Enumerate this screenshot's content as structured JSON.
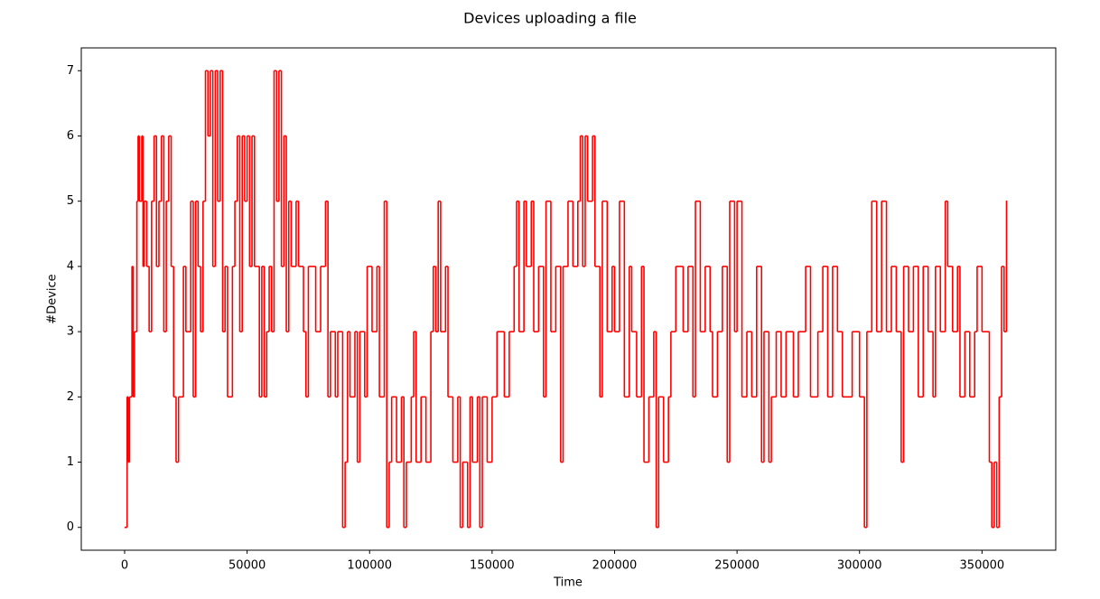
{
  "chart_data": {
    "type": "line",
    "drawstyle": "steps-post",
    "title": "Devices uploading a file",
    "xlabel": "Time",
    "ylabel": "#Device",
    "xlim": [
      -17700,
      380100
    ],
    "ylim": [
      -0.35,
      7.35
    ],
    "xticks": [
      0,
      50000,
      100000,
      150000,
      200000,
      250000,
      300000,
      350000
    ],
    "yticks": [
      0,
      1,
      2,
      3,
      4,
      5,
      6,
      7
    ],
    "grid": false,
    "x": [
      0,
      1000,
      1500,
      2000,
      3000,
      3500,
      4000,
      5000,
      5500,
      6000,
      7000,
      7500,
      8000,
      9000,
      10000,
      11000,
      12000,
      13000,
      14000,
      15000,
      16000,
      17000,
      18000,
      19000,
      20000,
      21000,
      22000,
      24000,
      25000,
      27000,
      28000,
      29000,
      30000,
      31000,
      32000,
      33000,
      34000,
      35000,
      36000,
      37000,
      38000,
      39000,
      40000,
      41000,
      42000,
      44000,
      45000,
      46000,
      47000,
      48000,
      49000,
      50000,
      51000,
      52000,
      53000,
      55000,
      56000,
      57000,
      58000,
      59000,
      60000,
      61000,
      62000,
      63000,
      64000,
      65000,
      66000,
      67000,
      68000,
      70000,
      71000,
      73000,
      74000,
      75000,
      78000,
      80000,
      82000,
      83000,
      84000,
      86000,
      87000,
      89000,
      90000,
      91000,
      92000,
      94000,
      95000,
      96000,
      98000,
      99000,
      101000,
      103000,
      104000,
      106000,
      107000,
      108000,
      109000,
      111000,
      113000,
      114000,
      115000,
      117000,
      118000,
      119000,
      121000,
      123000,
      125000,
      126000,
      127000,
      128000,
      129000,
      131000,
      132000,
      134000,
      136000,
      137000,
      138000,
      140000,
      141000,
      142000,
      144000,
      145000,
      146000,
      148000,
      150000,
      152000,
      155000,
      157000,
      159000,
      160000,
      161000,
      163000,
      164000,
      166000,
      167000,
      169000,
      171000,
      172000,
      174000,
      176000,
      178000,
      179000,
      181000,
      183000,
      185000,
      186000,
      187000,
      188000,
      189000,
      191000,
      192000,
      194000,
      195000,
      197000,
      199000,
      200000,
      202000,
      204000,
      206000,
      207000,
      209000,
      211000,
      212000,
      214000,
      216000,
      217000,
      218000,
      220000,
      222000,
      223000,
      225000,
      228000,
      230000,
      232000,
      233000,
      235000,
      237000,
      239000,
      240000,
      242000,
      244000,
      246000,
      247000,
      249000,
      250000,
      252000,
      254000,
      256000,
      258000,
      260000,
      261000,
      263000,
      264000,
      266000,
      268000,
      270000,
      273000,
      275000,
      278000,
      280000,
      283000,
      285000,
      287000,
      289000,
      291000,
      293000,
      297000,
      300000,
      302000,
      303000,
      305000,
      307000,
      309000,
      311000,
      313000,
      315000,
      317000,
      318000,
      320000,
      322000,
      324000,
      326000,
      328000,
      330000,
      331000,
      333000,
      335000,
      336000,
      338000,
      340000,
      341000,
      343000,
      345000,
      347000,
      348000,
      350000,
      353000,
      354000,
      355000,
      356000,
      357000,
      358000,
      359000,
      360000
    ],
    "series": [
      {
        "color": "#ff0000",
        "values": [
          0,
          2,
          1,
          2,
          4,
          2,
          3,
          5,
          6,
          5,
          6,
          4,
          5,
          4,
          3,
          5,
          6,
          4,
          5,
          6,
          3,
          5,
          6,
          4,
          2,
          1,
          2,
          4,
          3,
          5,
          2,
          5,
          4,
          3,
          5,
          7,
          6,
          7,
          4,
          7,
          5,
          7,
          3,
          4,
          2,
          4,
          5,
          6,
          3,
          6,
          5,
          6,
          4,
          6,
          4,
          2,
          4,
          2,
          3,
          4,
          3,
          7,
          5,
          7,
          4,
          6,
          3,
          5,
          4,
          5,
          4,
          3,
          2,
          4,
          3,
          4,
          5,
          2,
          3,
          2,
          3,
          0,
          1,
          3,
          2,
          3,
          1,
          3,
          2,
          4,
          3,
          4,
          2,
          5,
          0,
          1,
          2,
          1,
          2,
          0,
          1,
          2,
          3,
          1,
          2,
          1,
          3,
          4,
          3,
          5,
          3,
          4,
          2,
          1,
          2,
          0,
          1,
          0,
          2,
          1,
          2,
          0,
          2,
          1,
          2,
          3,
          2,
          3,
          4,
          5,
          3,
          5,
          4,
          5,
          3,
          4,
          2,
          5,
          3,
          4,
          1,
          4,
          5,
          4,
          5,
          6,
          4,
          6,
          5,
          6,
          4,
          2,
          5,
          3,
          4,
          3,
          5,
          2,
          4,
          3,
          2,
          4,
          1,
          2,
          3,
          0,
          2,
          1,
          2,
          3,
          4,
          3,
          4,
          2,
          5,
          3,
          4,
          3,
          2,
          3,
          4,
          1,
          5,
          3,
          5,
          2,
          3,
          2,
          4,
          1,
          3,
          1,
          2,
          3,
          2,
          3,
          2,
          3,
          4,
          2,
          3,
          4,
          2,
          4,
          3,
          2,
          3,
          2,
          0,
          3,
          5,
          3,
          5,
          3,
          4,
          3,
          1,
          4,
          3,
          4,
          2,
          4,
          3,
          2,
          4,
          3,
          5,
          4,
          3,
          4,
          2,
          3,
          2,
          3,
          4,
          3,
          1,
          0,
          1,
          0,
          2,
          4,
          3,
          5
        ]
      }
    ]
  }
}
